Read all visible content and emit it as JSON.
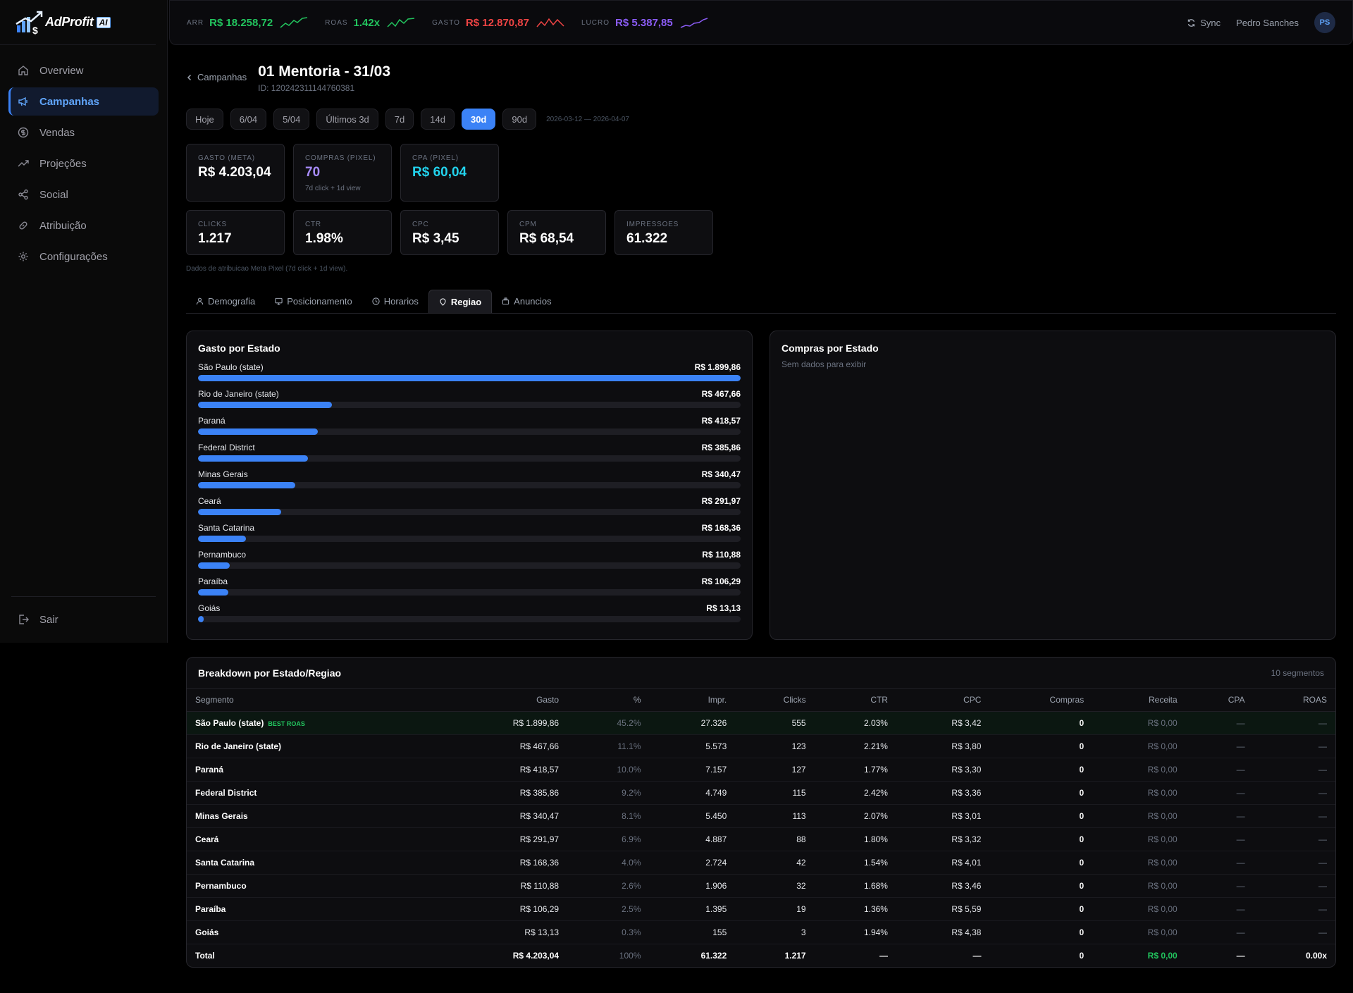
{
  "app": {
    "name": "AdProfit",
    "badge": "AI"
  },
  "colors": {
    "accent": "#3b82f6",
    "green": "#22c55e",
    "red": "#ef4444",
    "purple": "#8b5cf6",
    "cyan": "#22d3ee",
    "bg": "#000000"
  },
  "sidebar": {
    "items": [
      {
        "label": "Overview",
        "icon": "home-icon"
      },
      {
        "label": "Campanhas",
        "icon": "megaphone-icon",
        "active": true
      },
      {
        "label": "Vendas",
        "icon": "dollar-icon"
      },
      {
        "label": "Projeções",
        "icon": "trend-icon"
      },
      {
        "label": "Social",
        "icon": "share-icon"
      },
      {
        "label": "Atribuição",
        "icon": "link-icon"
      },
      {
        "label": "Configurações",
        "icon": "gear-icon"
      }
    ],
    "logout": "Sair"
  },
  "topbar": {
    "metrics": [
      {
        "label": "ARR",
        "value": "R$ 18.258,72",
        "color": "#22c55e"
      },
      {
        "label": "ROAS",
        "value": "1.42x",
        "color": "#22c55e"
      },
      {
        "label": "GASTO",
        "value": "R$ 12.870,87",
        "color": "#ef4444"
      },
      {
        "label": "LUCRO",
        "value": "R$ 5.387,85",
        "color": "#8b5cf6"
      }
    ],
    "sync": "Sync",
    "user": "Pedro Sanches",
    "initials": "PS"
  },
  "header": {
    "back": "Campanhas",
    "title": "01 Mentoria - 31/03",
    "id": "ID: 120242311144760381"
  },
  "ranges": {
    "items": [
      "Hoje",
      "6/04",
      "5/04",
      "Últimos 3d",
      "7d",
      "14d",
      "30d",
      "90d"
    ],
    "active": "30d",
    "date_range": "2026-03-12 — 2026-04-07"
  },
  "cards_row1": [
    {
      "label": "GASTO (META)",
      "value": "R$ 4.203,04",
      "color": "#ffffff"
    },
    {
      "label": "COMPRAS (PIXEL)",
      "value": "70",
      "sub": "7d click + 1d view",
      "color": "#a78bfa"
    },
    {
      "label": "CPA (PIXEL)",
      "value": "R$ 60,04",
      "color": "#22d3ee"
    }
  ],
  "cards_row2": [
    {
      "label": "CLICKS",
      "value": "1.217"
    },
    {
      "label": "CTR",
      "value": "1.98%"
    },
    {
      "label": "CPC",
      "value": "R$ 3,45"
    },
    {
      "label": "CPM",
      "value": "R$ 68,54"
    },
    {
      "label": "IMPRESSOES",
      "value": "61.322"
    }
  ],
  "note": "Dados de atribuicao Meta Pixel (7d click + 1d view).",
  "tabs": [
    {
      "label": "Demografia",
      "icon": "person-icon"
    },
    {
      "label": "Posicionamento",
      "icon": "monitor-icon"
    },
    {
      "label": "Horarios",
      "icon": "clock-icon"
    },
    {
      "label": "Regiao",
      "icon": "map-pin-icon",
      "active": true
    },
    {
      "label": "Anuncios",
      "icon": "layers-icon"
    }
  ],
  "gasto_panel": {
    "title": "Gasto por Estado",
    "max": 1899.86,
    "items": [
      {
        "name": "São Paulo (state)",
        "label": "R$ 1.899,86",
        "value": 1899.86
      },
      {
        "name": "Rio de Janeiro (state)",
        "label": "R$ 467,66",
        "value": 467.66
      },
      {
        "name": "Paraná",
        "label": "R$ 418,57",
        "value": 418.57
      },
      {
        "name": "Federal District",
        "label": "R$ 385,86",
        "value": 385.86
      },
      {
        "name": "Minas Gerais",
        "label": "R$ 340,47",
        "value": 340.47
      },
      {
        "name": "Ceará",
        "label": "R$ 291,97",
        "value": 291.97
      },
      {
        "name": "Santa Catarina",
        "label": "R$ 168,36",
        "value": 168.36
      },
      {
        "name": "Pernambuco",
        "label": "R$ 110,88",
        "value": 110.88
      },
      {
        "name": "Paraíba",
        "label": "R$ 106,29",
        "value": 106.29
      },
      {
        "name": "Goiás",
        "label": "R$ 13,13",
        "value": 13.13
      }
    ]
  },
  "compras_panel": {
    "title": "Compras por Estado",
    "empty": "Sem dados para exibir"
  },
  "breakdown": {
    "title": "Breakdown por Estado/Regiao",
    "segments": "10 segmentos",
    "best_badge": "BEST ROAS",
    "columns": [
      "Segmento",
      "Gasto",
      "%",
      "Impr.",
      "Clicks",
      "CTR",
      "CPC",
      "Compras",
      "Receita",
      "CPA",
      "ROAS"
    ],
    "rows": [
      [
        "São Paulo (state)",
        "R$ 1.899,86",
        "45.2%",
        "27.326",
        "555",
        "2.03%",
        "R$ 3,42",
        "0",
        "R$ 0,00",
        "—",
        "—"
      ],
      [
        "Rio de Janeiro (state)",
        "R$ 467,66",
        "11.1%",
        "5.573",
        "123",
        "2.21%",
        "R$ 3,80",
        "0",
        "R$ 0,00",
        "—",
        "—"
      ],
      [
        "Paraná",
        "R$ 418,57",
        "10.0%",
        "7.157",
        "127",
        "1.77%",
        "R$ 3,30",
        "0",
        "R$ 0,00",
        "—",
        "—"
      ],
      [
        "Federal District",
        "R$ 385,86",
        "9.2%",
        "4.749",
        "115",
        "2.42%",
        "R$ 3,36",
        "0",
        "R$ 0,00",
        "—",
        "—"
      ],
      [
        "Minas Gerais",
        "R$ 340,47",
        "8.1%",
        "5.450",
        "113",
        "2.07%",
        "R$ 3,01",
        "0",
        "R$ 0,00",
        "—",
        "—"
      ],
      [
        "Ceará",
        "R$ 291,97",
        "6.9%",
        "4.887",
        "88",
        "1.80%",
        "R$ 3,32",
        "0",
        "R$ 0,00",
        "—",
        "—"
      ],
      [
        "Santa Catarina",
        "R$ 168,36",
        "4.0%",
        "2.724",
        "42",
        "1.54%",
        "R$ 4,01",
        "0",
        "R$ 0,00",
        "—",
        "—"
      ],
      [
        "Pernambuco",
        "R$ 110,88",
        "2.6%",
        "1.906",
        "32",
        "1.68%",
        "R$ 3,46",
        "0",
        "R$ 0,00",
        "—",
        "—"
      ],
      [
        "Paraíba",
        "R$ 106,29",
        "2.5%",
        "1.395",
        "19",
        "1.36%",
        "R$ 5,59",
        "0",
        "R$ 0,00",
        "—",
        "—"
      ],
      [
        "Goiás",
        "R$ 13,13",
        "0.3%",
        "155",
        "3",
        "1.94%",
        "R$ 4,38",
        "0",
        "R$ 0,00",
        "—",
        "—"
      ]
    ],
    "total": [
      "Total",
      "R$ 4.203,04",
      "100%",
      "61.322",
      "1.217",
      "—",
      "—",
      "0",
      "R$ 0,00",
      "—",
      "0.00x"
    ]
  }
}
